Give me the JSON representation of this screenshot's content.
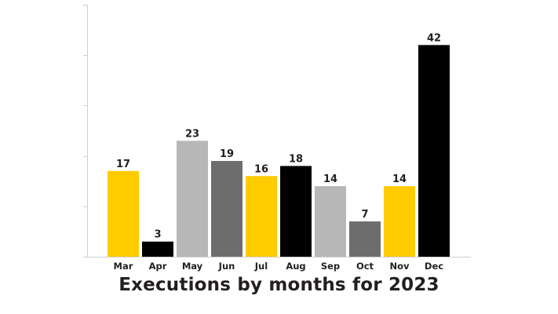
{
  "chart_data": {
    "type": "bar",
    "title": "Executions by months for 2023",
    "xlabel": "",
    "ylabel": "",
    "ylim": [
      0,
      50
    ],
    "grid": false,
    "categories": [
      "Mar",
      "Apr",
      "May",
      "Jun",
      "Jul",
      "Aug",
      "Sep",
      "Oct",
      "Nov",
      "Dec"
    ],
    "values": [
      17,
      3,
      23,
      19,
      16,
      18,
      14,
      7,
      14,
      42
    ],
    "colors": [
      "#ffcc00",
      "#000000",
      "#b7b7b7",
      "#6d6d6d",
      "#ffcc00",
      "#000000",
      "#b7b7b7",
      "#6d6d6d",
      "#ffcc00",
      "#000000"
    ],
    "axis_color": "#cfcfcf",
    "label_color": "#231f20"
  }
}
